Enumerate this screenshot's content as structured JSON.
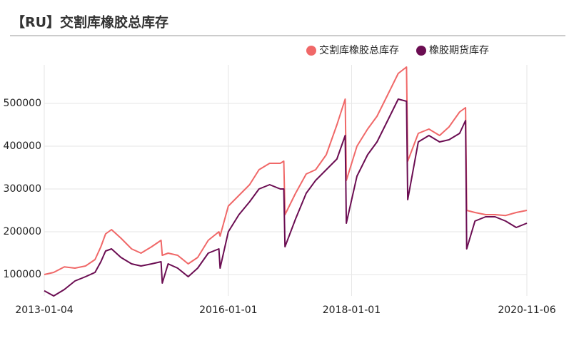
{
  "chart_data": {
    "type": "line",
    "title": "【RU】交割库橡胶总库存",
    "x": [
      "2013-01-04",
      "2013-03-01",
      "2013-05-03",
      "2013-07-05",
      "2013-09-06",
      "2013-11-01",
      "2013-12-06",
      "2014-01-03",
      "2014-02-07",
      "2014-04-04",
      "2014-06-06",
      "2014-08-01",
      "2014-10-03",
      "2014-11-28",
      "2014-12-05",
      "2015-01-09",
      "2015-03-06",
      "2015-05-08",
      "2015-07-03",
      "2015-09-04",
      "2015-11-06",
      "2015-11-13",
      "2016-01-01",
      "2016-03-04",
      "2016-05-06",
      "2016-07-01",
      "2016-09-02",
      "2016-11-04",
      "2016-11-25",
      "2016-12-02",
      "2017-02-03",
      "2017-04-07",
      "2017-06-02",
      "2017-08-04",
      "2017-10-06",
      "2017-11-24",
      "2017-12-01",
      "2018-02-02",
      "2018-04-06",
      "2018-06-01",
      "2018-08-03",
      "2018-10-05",
      "2018-11-23",
      "2018-11-30",
      "2019-02-01",
      "2019-04-05",
      "2019-06-07",
      "2019-08-02",
      "2019-10-04",
      "2019-11-08",
      "2019-11-15",
      "2020-01-03",
      "2020-03-06",
      "2020-05-01",
      "2020-07-03",
      "2020-09-04",
      "2020-11-06"
    ],
    "series": [
      {
        "name": "交割库橡胶总库存",
        "color": "#f06868",
        "values": [
          100000,
          105000,
          118000,
          115000,
          120000,
          135000,
          165000,
          195000,
          205000,
          185000,
          160000,
          150000,
          165000,
          180000,
          145000,
          150000,
          145000,
          125000,
          140000,
          180000,
          200000,
          190000,
          260000,
          285000,
          310000,
          345000,
          360000,
          360000,
          365000,
          240000,
          290000,
          335000,
          345000,
          380000,
          450000,
          510000,
          320000,
          400000,
          440000,
          470000,
          520000,
          570000,
          585000,
          365000,
          430000,
          440000,
          425000,
          445000,
          480000,
          490000,
          250000,
          245000,
          240000,
          240000,
          238000,
          245000,
          250000
        ]
      },
      {
        "name": "橡胶期货库存",
        "color": "#6b0d52",
        "values": [
          62000,
          50000,
          65000,
          85000,
          95000,
          105000,
          130000,
          155000,
          160000,
          140000,
          125000,
          120000,
          125000,
          130000,
          80000,
          125000,
          115000,
          95000,
          115000,
          150000,
          160000,
          115000,
          200000,
          240000,
          270000,
          300000,
          310000,
          300000,
          300000,
          165000,
          230000,
          290000,
          320000,
          345000,
          370000,
          425000,
          220000,
          330000,
          380000,
          410000,
          460000,
          510000,
          505000,
          275000,
          410000,
          425000,
          410000,
          415000,
          430000,
          460000,
          160000,
          225000,
          235000,
          235000,
          225000,
          210000,
          220000
        ]
      }
    ],
    "xlim": [
      "2013-01-04",
      "2020-11-06"
    ],
    "xticks": [
      "2013-01-04",
      "2016-01-01",
      "2018-01-01",
      "2020-11-06"
    ],
    "ylim": [
      50000,
      590000
    ],
    "yticks": [
      100000,
      200000,
      300000,
      400000,
      500000
    ],
    "grid": true
  }
}
